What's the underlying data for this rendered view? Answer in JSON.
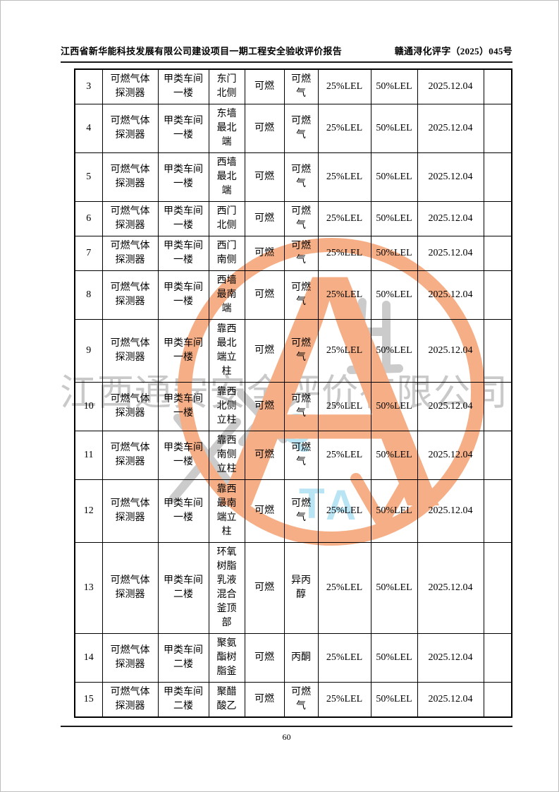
{
  "page": {
    "header_left": "江西省新华能科技发展有限公司建设项目一期工程安全验收评价报告",
    "header_right": "赣通浔化评字（2025）045号",
    "page_number": "60"
  },
  "watermark": {
    "company_text": "江西通安安全评价有限公司",
    "letter_q": "Q",
    "letter_t": "T",
    "letter_a": "A",
    "seal_letter": "A",
    "orange": "#f5ae85",
    "blue": "#b9e4f4",
    "gray": "#c8c8c8"
  },
  "table": {
    "rows": [
      {
        "no": "3",
        "device": "可燃气体\n探测器",
        "workshop": "甲类车间\n一楼",
        "location": "东门\n北侧",
        "gas": "可燃",
        "medium": "可燃\n气",
        "low_alarm": "25%LEL",
        "high_alarm": "50%LEL",
        "date": "2025.12.04",
        "note": ""
      },
      {
        "no": "4",
        "device": "可燃气体\n探测器",
        "workshop": "甲类车间\n一楼",
        "location": "东墙\n最北\n端",
        "gas": "可燃",
        "medium": "可燃\n气",
        "low_alarm": "25%LEL",
        "high_alarm": "50%LEL",
        "date": "2025.12.04",
        "note": ""
      },
      {
        "no": "5",
        "device": "可燃气体\n探测器",
        "workshop": "甲类车间\n一楼",
        "location": "西墙\n最北\n端",
        "gas": "可燃",
        "medium": "可燃\n气",
        "low_alarm": "25%LEL",
        "high_alarm": "50%LEL",
        "date": "2025.12.04",
        "note": ""
      },
      {
        "no": "6",
        "device": "可燃气体\n探测器",
        "workshop": "甲类车间\n一楼",
        "location": "西门\n北侧",
        "gas": "可燃",
        "medium": "可燃\n气",
        "low_alarm": "25%LEL",
        "high_alarm": "50%LEL",
        "date": "2025.12.04",
        "note": ""
      },
      {
        "no": "7",
        "device": "可燃气体\n探测器",
        "workshop": "甲类车间\n一楼",
        "location": "西门\n南侧",
        "gas": "可燃",
        "medium": "可燃\n气",
        "low_alarm": "25%LEL",
        "high_alarm": "50%LEL",
        "date": "2025.12.04",
        "note": ""
      },
      {
        "no": "8",
        "device": "可燃气体\n探测器",
        "workshop": "甲类车间\n一楼",
        "location": "西墙\n最南\n端",
        "gas": "可燃",
        "medium": "可燃\n气",
        "low_alarm": "25%LEL",
        "high_alarm": "50%LEL",
        "date": "2025.12.04",
        "note": ""
      },
      {
        "no": "9",
        "device": "可燃气体\n探测器",
        "workshop": "甲类车间\n一楼",
        "location": "靠西\n最北\n端立\n柱",
        "gas": "可燃",
        "medium": "可燃\n气",
        "low_alarm": "25%LEL",
        "high_alarm": "50%LEL",
        "date": "2025.12.04",
        "note": ""
      },
      {
        "no": "10",
        "device": "可燃气体\n探测器",
        "workshop": "甲类车间\n一楼",
        "location": "靠西\n北侧\n立柱",
        "gas": "可燃",
        "medium": "可燃\n气",
        "low_alarm": "25%LEL",
        "high_alarm": "50%LEL",
        "date": "2025.12.04",
        "note": ""
      },
      {
        "no": "11",
        "device": "可燃气体\n探测器",
        "workshop": "甲类车间\n一楼",
        "location": "靠西\n南侧\n立柱",
        "gas": "可燃",
        "medium": "可燃\n气",
        "low_alarm": "25%LEL",
        "high_alarm": "50%LEL",
        "date": "2025.12.04",
        "note": ""
      },
      {
        "no": "12",
        "device": "可燃气体\n探测器",
        "workshop": "甲类车间\n一楼",
        "location": "靠西\n最南\n端立\n柱",
        "gas": "可燃",
        "medium": "可燃\n气",
        "low_alarm": "25%LEL",
        "high_alarm": "50%LEL",
        "date": "2025.12.04",
        "note": ""
      },
      {
        "no": "13",
        "device": "可燃气体\n探测器",
        "workshop": "甲类车间\n二楼",
        "location": "环氧\n树脂\n乳液\n混合\n釜顶\n部",
        "gas": "可燃",
        "medium": "异丙\n醇",
        "low_alarm": "25%LEL",
        "high_alarm": "50%LEL",
        "date": "2025.12.04",
        "note": ""
      },
      {
        "no": "14",
        "device": "可燃气体\n探测器",
        "workshop": "甲类车间\n二楼",
        "location": "聚氨\n酯树\n脂釜",
        "gas": "可燃",
        "medium": "丙酮",
        "low_alarm": "25%LEL",
        "high_alarm": "50%LEL",
        "date": "2025.12.04",
        "note": ""
      },
      {
        "no": "15",
        "device": "可燃气体\n探测器",
        "workshop": "甲类车间\n二楼",
        "location": "聚醋\n酸乙",
        "gas": "可燃",
        "medium": "可燃\n气",
        "low_alarm": "25%LEL",
        "high_alarm": "50%LEL",
        "date": "2025.12.04",
        "note": ""
      }
    ]
  }
}
